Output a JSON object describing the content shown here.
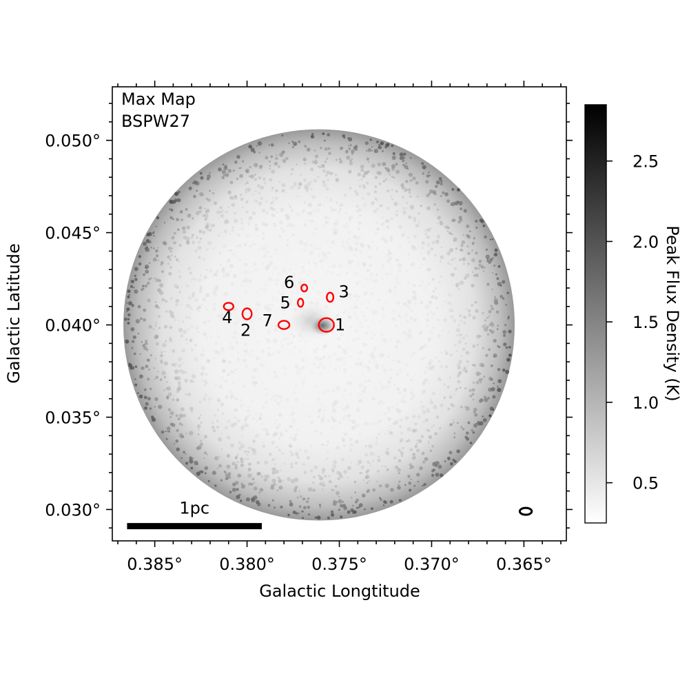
{
  "chart_data": {
    "type": "heatmap",
    "annotation_lines": [
      "Max Map",
      "BSPW27"
    ],
    "xlabel": "Galactic Longtitude",
    "ylabel": "Galactic Latitude",
    "x_ticks": [
      {
        "value": 0.385,
        "label": "0.385°"
      },
      {
        "value": 0.38,
        "label": "0.380°"
      },
      {
        "value": 0.375,
        "label": "0.375°"
      },
      {
        "value": 0.37,
        "label": "0.370°"
      },
      {
        "value": 0.365,
        "label": "0.365°"
      }
    ],
    "y_ticks": [
      {
        "value": 0.03,
        "label": "0.030°"
      },
      {
        "value": 0.035,
        "label": "0.035°"
      },
      {
        "value": 0.04,
        "label": "0.040°"
      },
      {
        "value": 0.045,
        "label": "0.045°"
      },
      {
        "value": 0.05,
        "label": "0.050°"
      }
    ],
    "xlim": [
      0.3873,
      0.3627
    ],
    "ylim": [
      0.0283,
      0.0529
    ],
    "grid": false,
    "colorbar": {
      "label": "Peak Flux Density (K)",
      "range": [
        0.25,
        2.85
      ],
      "ticks": [
        {
          "value": 0.5,
          "label": "0.5"
        },
        {
          "value": 1.0,
          "label": "1.0"
        },
        {
          "value": 1.5,
          "label": "1.5"
        },
        {
          "value": 2.0,
          "label": "2.0"
        },
        {
          "value": 2.5,
          "label": "2.5"
        }
      ],
      "colormap": "grayscale (white to black)"
    },
    "map_field": {
      "center_l": 0.3761,
      "center_b": 0.04,
      "radius_deg": 0.0106
    },
    "scale_bar": {
      "label": "1pc",
      "l_start": 0.3865,
      "l_end": 0.3792,
      "b": 0.0291
    },
    "beam": {
      "l": 0.3649,
      "b": 0.0299,
      "width_deg": 0.00065,
      "height_deg": 0.00037
    },
    "sources": [
      {
        "label": "1",
        "l": 0.3757,
        "b": 0.04,
        "w": 0.00082,
        "h": 0.00074
      },
      {
        "label": "2",
        "l": 0.38,
        "b": 0.0406,
        "w": 0.0005,
        "h": 0.0006
      },
      {
        "label": "3",
        "l": 0.3755,
        "b": 0.0415,
        "w": 0.00036,
        "h": 0.0005
      },
      {
        "label": "4",
        "l": 0.381,
        "b": 0.041,
        "w": 0.00052,
        "h": 0.0004
      },
      {
        "label": "5",
        "l": 0.3771,
        "b": 0.0412,
        "w": 0.0003,
        "h": 0.00044
      },
      {
        "label": "6",
        "l": 0.3769,
        "b": 0.042,
        "w": 0.00032,
        "h": 0.00037
      },
      {
        "label": "7",
        "l": 0.378,
        "b": 0.04,
        "w": 0.0006,
        "h": 0.00045
      }
    ],
    "colors": {
      "source_marker": "#ff0000",
      "beam": "#000000",
      "scale_bar": "#000000"
    }
  }
}
